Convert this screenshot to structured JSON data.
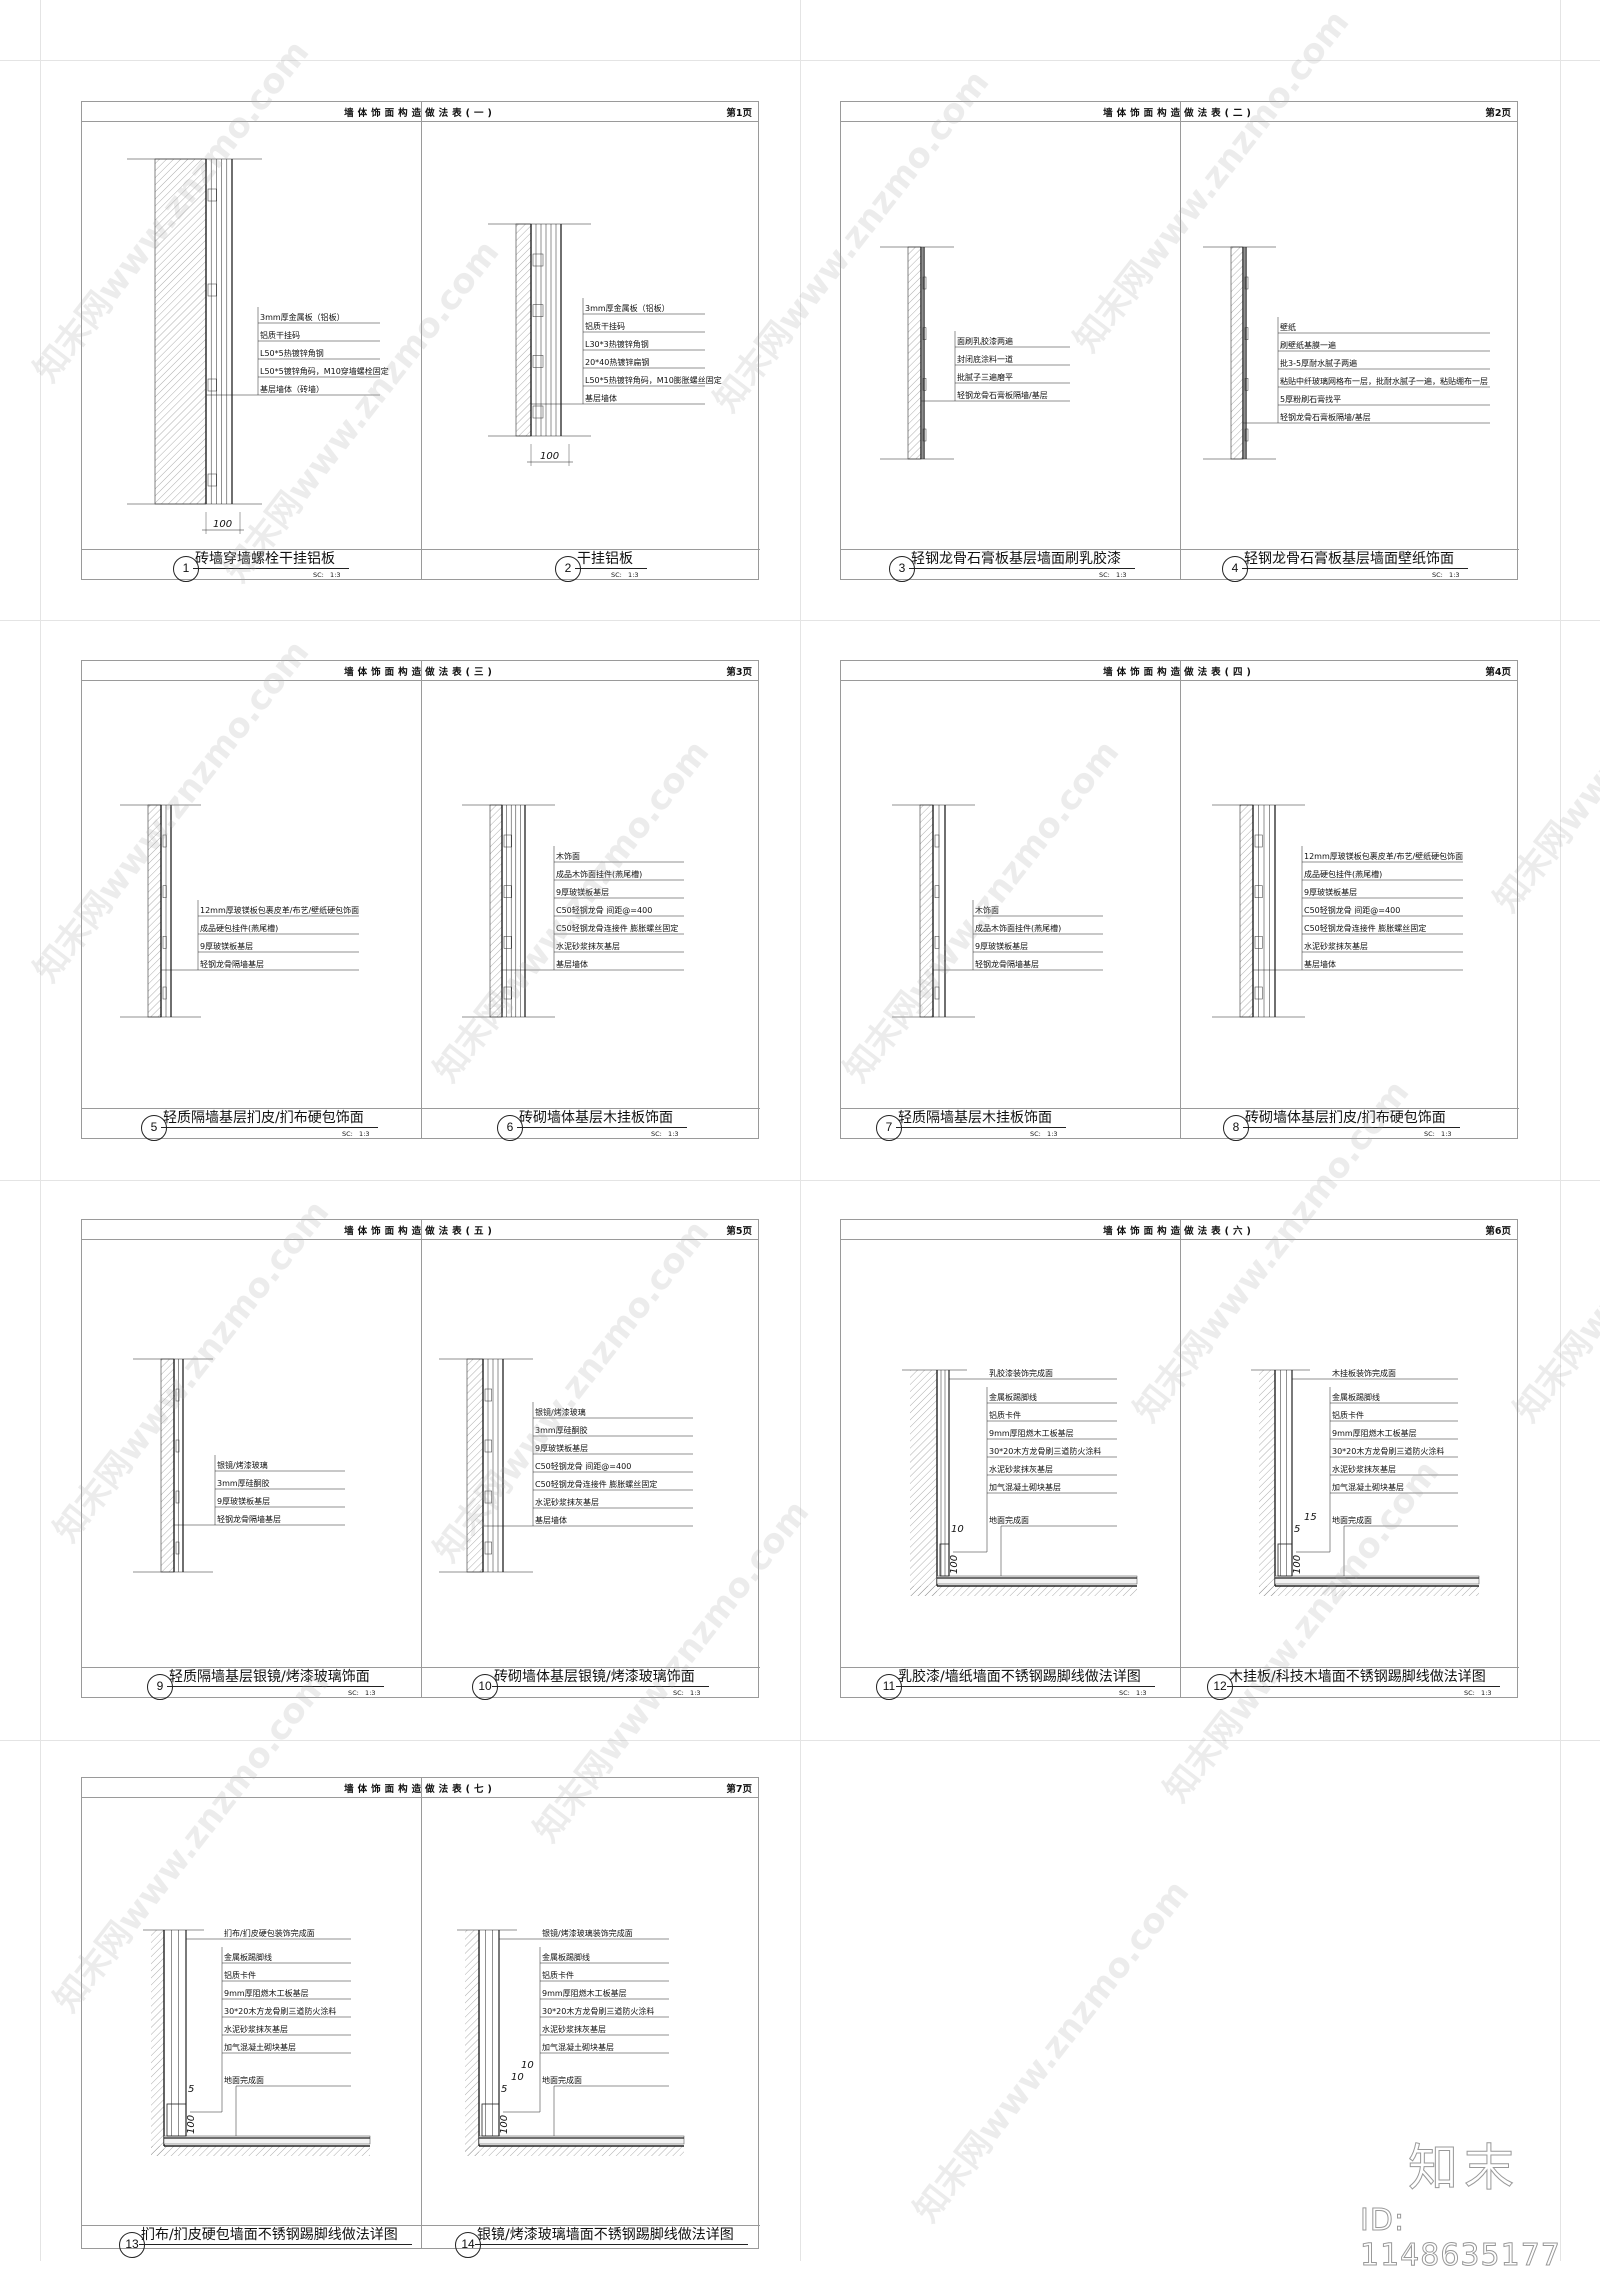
{
  "watermark": {
    "text": "知末网www.znzmo.com"
  },
  "brand": {
    "logo_text": "知末",
    "id_text": "ID: 1148635177"
  },
  "sheets": [
    {
      "title": "墙体饰面构造做法表(一)",
      "page": "第1页",
      "panels": [
        {
          "number": "1",
          "title": "砖墙穿墙螺栓干挂铝板",
          "scale": "SC:   1:3",
          "labels": [
            "3mm厚金属板（铝板）",
            "铝质干挂码",
            "L50*5热镀锌角钢",
            "L50*5镀锌角码，M10穿墙螺栓固定",
            "基层墙体（砖墙）"
          ],
          "dims": [
            "100"
          ]
        },
        {
          "number": "2",
          "title": "干挂铝板",
          "scale": "SC:   1:3",
          "labels": [
            "3mm厚金属板（铝板）",
            "铝质干挂码",
            "L30*3热镀锌角钢",
            "20*40热镀锌扁钢",
            "L50*5热镀锌角码，M10膨胀螺丝固定",
            "基层墙体"
          ],
          "dims": [
            "100"
          ]
        }
      ]
    },
    {
      "title": "墙体饰面构造做法表(二)",
      "page": "第2页",
      "panels": [
        {
          "number": "3",
          "title": "轻钢龙骨石膏板基层墙面刷乳胶漆",
          "scale": "SC:   1:3",
          "labels": [
            "面刷乳胶漆两遍",
            "封闭底涂料一道",
            "批腻子三遍磨平",
            "轻钢龙骨石膏板隔墙/基层"
          ],
          "dims": []
        },
        {
          "number": "4",
          "title": "轻钢龙骨石膏板基层墙面壁纸饰面",
          "scale": "SC:   1:3",
          "labels": [
            "壁纸",
            "刷壁纸基膜一遍",
            "批3-5厚耐水腻子两遍",
            "粘贴中纤玻璃网格布一层，批耐水腻子一遍，粘贴绷布一层",
            "5厚粉刷石膏找平",
            "轻钢龙骨石膏板隔墙/基层"
          ],
          "dims": []
        }
      ]
    },
    {
      "title": "墙体饰面构造做法表(三)",
      "page": "第3页",
      "panels": [
        {
          "number": "5",
          "title": "轻质隔墙基层扪皮/扪布硬包饰面",
          "scale": "SC:   1:3",
          "labels": [
            "12mm厚玻镁板包裹皮革/布艺/壁纸硬包饰面",
            "成品硬包挂件(燕尾槽)",
            "9厚玻镁板基层",
            "轻钢龙骨隔墙基层"
          ],
          "dims": []
        },
        {
          "number": "6",
          "title": "砖砌墙体基层木挂板饰面",
          "scale": "SC:   1:3",
          "labels": [
            "木饰面",
            "成品木饰面挂件(燕尾槽)",
            "9厚玻镁板基层",
            "C50轻钢龙骨 间距@=400",
            "C50轻钢龙骨连接件 膨胀螺丝固定",
            "水泥砂浆抹灰基层",
            "基层墙体"
          ],
          "dims": []
        }
      ]
    },
    {
      "title": "墙体饰面构造做法表(四)",
      "page": "第4页",
      "panels": [
        {
          "number": "7",
          "title": "轻质隔墙基层木挂板饰面",
          "scale": "SC:   1:3",
          "labels": [
            "木饰面",
            "成品木饰面挂件(燕尾槽)",
            "9厚玻镁板基层",
            "轻钢龙骨隔墙基层"
          ],
          "dims": []
        },
        {
          "number": "8",
          "title": "砖砌墙体基层扪皮/扪布硬包饰面",
          "scale": "SC:   1:3",
          "labels": [
            "12mm厚玻镁板包裹皮革/布艺/壁纸硬包饰面",
            "成品硬包挂件(燕尾槽)",
            "9厚玻镁板基层",
            "C50轻钢龙骨 间距@=400",
            "C50轻钢龙骨连接件 膨胀螺丝固定",
            "水泥砂浆抹灰基层",
            "基层墙体"
          ],
          "dims": []
        }
      ]
    },
    {
      "title": "墙体饰面构造做法表(五)",
      "page": "第5页",
      "panels": [
        {
          "number": "9",
          "title": "轻质隔墙基层银镜/烤漆玻璃饰面",
          "scale": "SC:   1:3",
          "labels": [
            "银镜/烤漆玻璃",
            "3mm厚硅酮胶",
            "9厚玻镁板基层",
            "轻钢龙骨隔墙基层"
          ],
          "dims": []
        },
        {
          "number": "10",
          "title": "砖砌墙体基层银镜/烤漆玻璃饰面",
          "scale": "SC:   1:3",
          "labels": [
            "银镜/烤漆玻璃",
            "3mm厚硅酮胶",
            "9厚玻镁板基层",
            "C50轻钢龙骨 间距@=400",
            "C50轻钢龙骨连接件 膨胀螺丝固定",
            "水泥砂浆抹灰基层",
            "基层墙体"
          ],
          "dims": []
        }
      ]
    },
    {
      "title": "墙体饰面构造做法表(六)",
      "page": "第6页",
      "panels": [
        {
          "number": "11",
          "title": "乳胶漆/墙纸墙面不锈钢踢脚线做法详图",
          "scale": "SC:   1:3",
          "labels": [
            "乳胶漆装饰完成面",
            "金属板踢脚线",
            "铝质卡件",
            "9mm厚阻燃木工板基层",
            "30*20木方龙骨刷三道防火涂料",
            "水泥砂浆抹灰基层",
            "加气混凝土砌块基层",
            "地面完成面"
          ],
          "dims": [
            "10",
            "100"
          ]
        },
        {
          "number": "12",
          "title": "木挂板/科技木墙面不锈钢踢脚线做法详图",
          "scale": "SC:   1:3",
          "labels": [
            "木挂板装饰完成面",
            "金属板踢脚线",
            "铝质卡件",
            "9mm厚阻燃木工板基层",
            "30*20木方龙骨刷三道防火涂料",
            "水泥砂浆抹灰基层",
            "加气混凝土砌块基层",
            "地面完成面"
          ],
          "dims": [
            "5",
            "15",
            "100"
          ]
        }
      ]
    },
    {
      "title": "墙体饰面构造做法表(七)",
      "page": "第7页",
      "panels": [
        {
          "number": "13",
          "title": "扪布/扪皮硬包墙面不锈钢踢脚线做法详图",
          "labels": [
            "扪布/扪皮硬包装饰完成面",
            "金属板踢脚线",
            "铝质卡件",
            "9mm厚阻燃木工板基层",
            "30*20木方龙骨刷三道防火涂料",
            "水泥砂浆抹灰基层",
            "加气混凝土砌块基层",
            "地面完成面"
          ],
          "dims": [
            "5",
            "100"
          ]
        },
        {
          "number": "14",
          "title": "银镜/烤漆玻璃墙面不锈钢踢脚线做法详图",
          "labels": [
            "银镜/烤漆玻璃装饰完成面",
            "金属板踢脚线",
            "铝质卡件",
            "9mm厚阻燃木工板基层",
            "30*20木方龙骨刷三道防火涂料",
            "水泥砂浆抹灰基层",
            "加气混凝土砌块基层",
            "地面完成面"
          ],
          "dims": [
            "5",
            "10",
            "10",
            "100"
          ]
        }
      ]
    }
  ]
}
